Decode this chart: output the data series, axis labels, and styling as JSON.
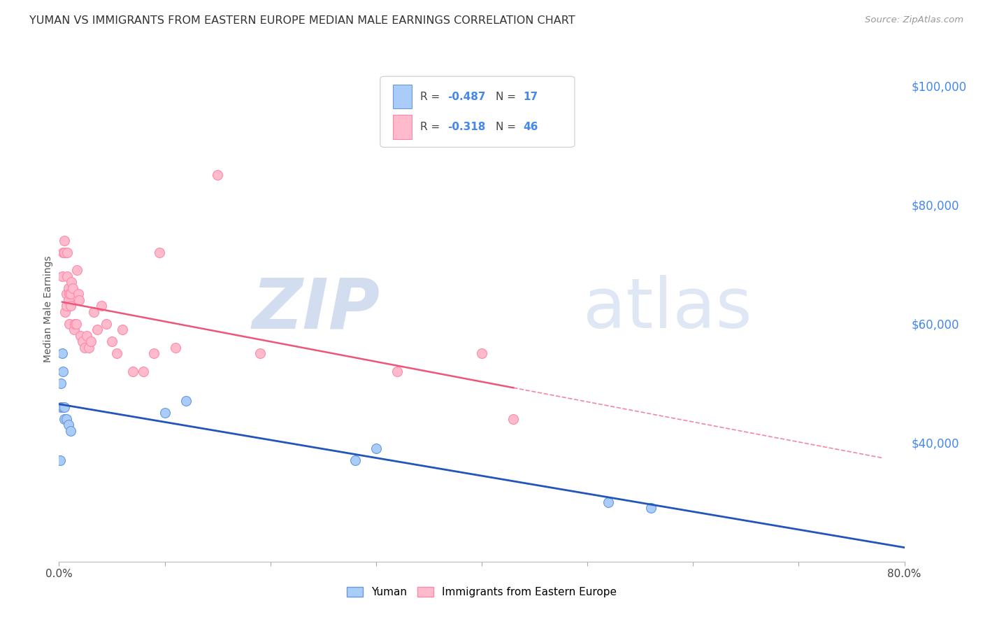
{
  "title": "YUMAN VS IMMIGRANTS FROM EASTERN EUROPE MEDIAN MALE EARNINGS CORRELATION CHART",
  "source": "Source: ZipAtlas.com",
  "ylabel": "Median Male Earnings",
  "right_yticks": [
    "$100,000",
    "$80,000",
    "$60,000",
    "$40,000"
  ],
  "right_ytick_vals": [
    100000,
    80000,
    60000,
    40000
  ],
  "yuman_color": "#aaccf8",
  "yuman_edge_color": "#6699dd",
  "immigrant_color": "#ffbbcc",
  "immigrant_edge_color": "#ff88aa",
  "yuman_line_color": "#2255bb",
  "immigrant_line_color": "#ee5577",
  "watermark_zip_color": "#ccd8ee",
  "watermark_atlas_color": "#ccd8ee",
  "background_color": "#ffffff",
  "grid_color": "#dddddd",
  "blue_text_color": "#4488ee",
  "dark_text_color": "#444444",
  "yuman_x": [
    0.001,
    0.002,
    0.002,
    0.003,
    0.004,
    0.004,
    0.005,
    0.005,
    0.007,
    0.009,
    0.011,
    0.1,
    0.12,
    0.28,
    0.3,
    0.52,
    0.56
  ],
  "yuman_y": [
    37000,
    50000,
    46000,
    55000,
    52000,
    46000,
    46000,
    44000,
    44000,
    43000,
    42000,
    45000,
    47000,
    37000,
    39000,
    30000,
    29000
  ],
  "immigrant_x": [
    0.003,
    0.004,
    0.005,
    0.005,
    0.006,
    0.007,
    0.007,
    0.008,
    0.008,
    0.009,
    0.009,
    0.01,
    0.01,
    0.011,
    0.011,
    0.012,
    0.013,
    0.014,
    0.015,
    0.016,
    0.017,
    0.018,
    0.019,
    0.02,
    0.022,
    0.024,
    0.026,
    0.028,
    0.03,
    0.033,
    0.036,
    0.04,
    0.045,
    0.05,
    0.055,
    0.06,
    0.07,
    0.08,
    0.09,
    0.095,
    0.11,
    0.15,
    0.19,
    0.32,
    0.4,
    0.43
  ],
  "immigrant_y": [
    68000,
    72000,
    72000,
    74000,
    62000,
    63000,
    65000,
    72000,
    68000,
    66000,
    64000,
    65000,
    60000,
    63000,
    65000,
    67000,
    66000,
    59000,
    60000,
    60000,
    69000,
    65000,
    64000,
    58000,
    57000,
    56000,
    58000,
    56000,
    57000,
    62000,
    59000,
    63000,
    60000,
    57000,
    55000,
    59000,
    52000,
    52000,
    55000,
    72000,
    56000,
    85000,
    55000,
    52000,
    55000,
    44000
  ],
  "xlim": [
    0,
    0.8
  ],
  "ylim": [
    20000,
    105000
  ],
  "marker_size": 100,
  "imm_line_solid_end": 0.43,
  "imm_line_dash_start": 0.43,
  "imm_line_dash_end": 0.78
}
